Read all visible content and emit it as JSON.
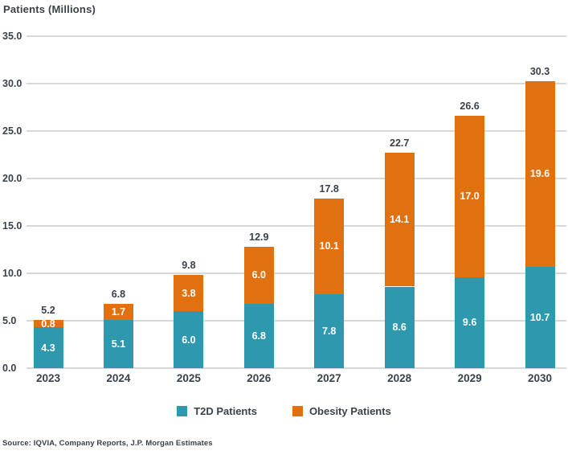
{
  "title": "Patients (Millions)",
  "source": "Source: IQVIA, Company Reports, J.P. Morgan Estimates",
  "colors": {
    "t2d": "#2E99AE",
    "obesity": "#E1700E",
    "text": "#3A414B",
    "gridline": "#D8D8D8",
    "bar_label": "#FFFFFF"
  },
  "legend": {
    "items": [
      {
        "label": "T2D Patients",
        "color_key": "t2d"
      },
      {
        "label": "Obesity Patients",
        "color_key": "obesity"
      }
    ]
  },
  "chart_data": {
    "type": "bar",
    "stacked": true,
    "title": "Patients (Millions)",
    "xlabel": "",
    "ylabel": "Patients (Millions)",
    "categories": [
      "2023",
      "2024",
      "2025",
      "2026",
      "2027",
      "2028",
      "2029",
      "2030"
    ],
    "series": [
      {
        "name": "T2D Patients",
        "color_key": "t2d",
        "values": [
          4.3,
          5.1,
          6.0,
          6.8,
          7.8,
          8.6,
          9.6,
          10.7
        ]
      },
      {
        "name": "Obesity Patients",
        "color_key": "obesity",
        "values": [
          0.8,
          1.7,
          3.8,
          6.0,
          10.1,
          14.1,
          17.0,
          19.6
        ]
      }
    ],
    "totals": [
      5.2,
      6.8,
      9.8,
      12.9,
      17.8,
      22.7,
      26.6,
      30.3
    ],
    "ylim": [
      0,
      35
    ],
    "ytick_step": 5,
    "ytick_labels": [
      "0.0",
      "5.0",
      "10.0",
      "15.0",
      "20.0",
      "25.0",
      "30.0",
      "35.0"
    ],
    "grid": true,
    "legend_position": "bottom"
  }
}
